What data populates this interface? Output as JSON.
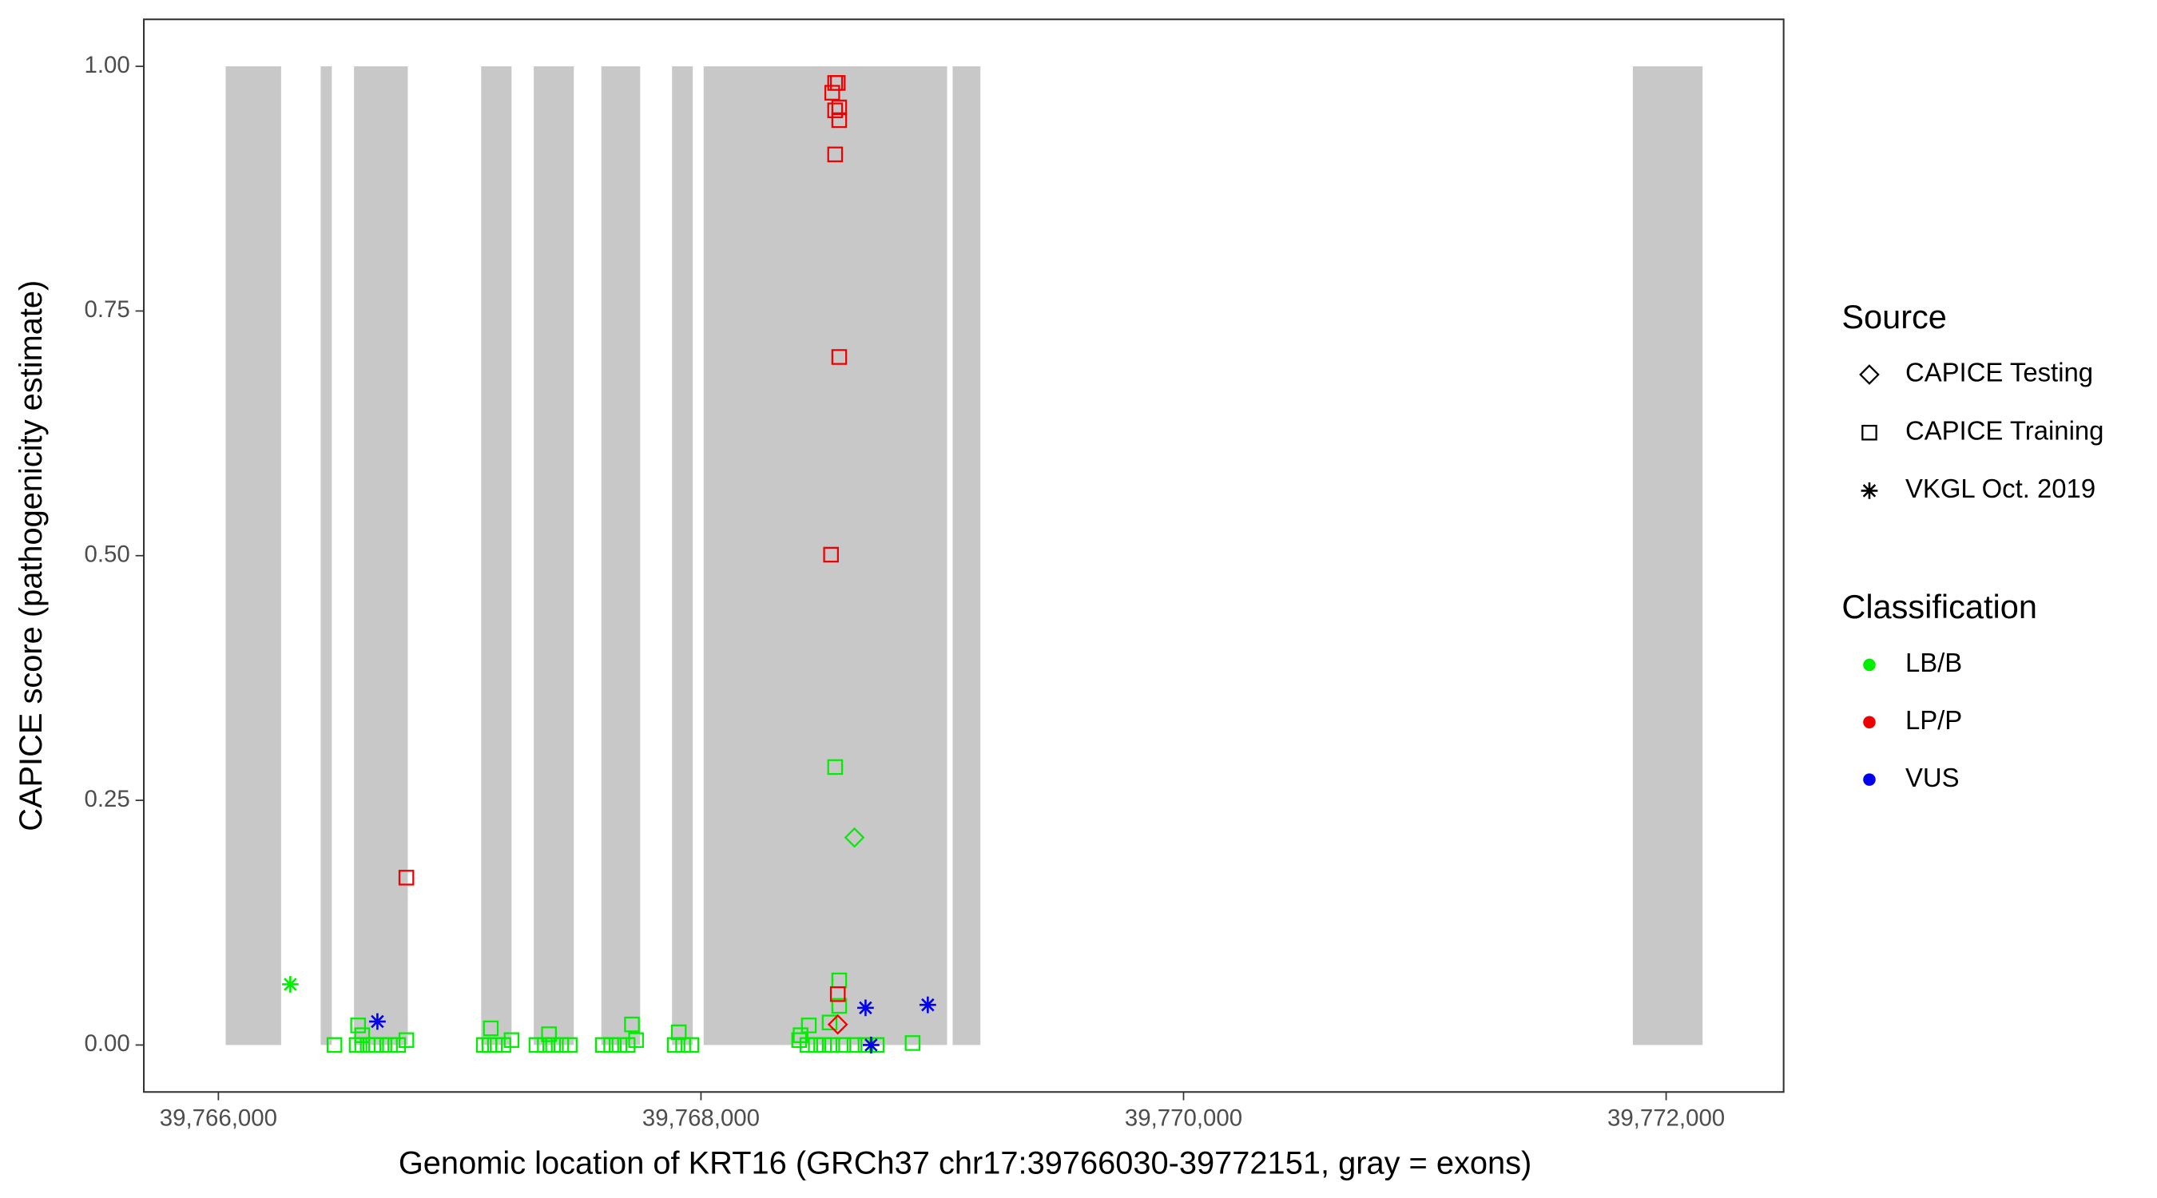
{
  "chart_data": {
    "type": "scatter",
    "x_label": "Genomic location of KRT16 (GRCh37 chr17:39766030-39772151, gray = exons)",
    "y_label": "CAPICE score (pathogenicity estimate)",
    "xlim": [
      39765691,
      39772487
    ],
    "ylim": [
      -0.048,
      1.048
    ],
    "xticks": [
      {
        "value": 39766000,
        "label": "39,766,000"
      },
      {
        "value": 39768000,
        "label": "39,768,000"
      },
      {
        "value": 39770000,
        "label": "39,770,000"
      },
      {
        "value": 39772000,
        "label": "39,772,000"
      }
    ],
    "yticks": [
      {
        "value": 0,
        "label": "0.00"
      },
      {
        "value": 0.25,
        "label": "0.25"
      },
      {
        "value": 0.5,
        "label": "0.50"
      },
      {
        "value": 0.75,
        "label": "0.75"
      },
      {
        "value": 1,
        "label": "1.00"
      }
    ],
    "exon_color": "#c8c8c8",
    "exons": [
      [
        39766030,
        39766260
      ],
      [
        39766424,
        39766470
      ],
      [
        39766562,
        39766785
      ],
      [
        39767089,
        39767215
      ],
      [
        39767307,
        39767473
      ],
      [
        39767587,
        39767748
      ],
      [
        39767880,
        39767966
      ],
      [
        39768011,
        39769020
      ],
      [
        39769043,
        39769158
      ],
      [
        39771862,
        39772151
      ]
    ],
    "source_title": "Source",
    "sources": [
      {
        "name": "CAPICE Testing",
        "shape": "diamond"
      },
      {
        "name": "CAPICE Training",
        "shape": "square"
      },
      {
        "name": "VKGL Oct. 2019",
        "shape": "asterisk"
      }
    ],
    "class_title": "Classification",
    "classes": [
      {
        "name": "LB/B",
        "color": "#00ee00"
      },
      {
        "name": "LP/P",
        "color": "#ee0000"
      },
      {
        "name": "VUS",
        "color": "#0000ee"
      }
    ],
    "series": [
      {
        "source": "CAPICE Training",
        "classification": "LB/B",
        "x": [
          39766481,
          39766573,
          39766596,
          39766619,
          39766642,
          39766676,
          39766711,
          39766745,
          39766779,
          39766579,
          39766596,
          39767100,
          39767123,
          39767146,
          39767181,
          39767215,
          39767129,
          39767318,
          39767353,
          39767387,
          39767421,
          39767456,
          39767370,
          39767593,
          39767628,
          39767662,
          39767696,
          39767731,
          39767714,
          39767891,
          39767926,
          39767960,
          39767908,
          39768407,
          39768441,
          39768476,
          39768510,
          39768544,
          39768590,
          39768636,
          39768682,
          39768728,
          39768877,
          39768447,
          39768413,
          39768556,
          39768573,
          39768573,
          39768533
        ],
        "values": [
          0,
          0,
          0,
          0,
          0,
          0,
          0,
          0,
          0.005,
          0.02,
          0.01,
          0,
          0,
          0,
          0,
          0.005,
          0.017,
          0,
          0,
          0,
          0,
          0,
          0.011,
          0,
          0,
          0,
          0,
          0.005,
          0.021,
          0,
          0,
          0,
          0.013,
          0.005,
          0,
          0,
          0,
          0,
          0,
          0,
          0,
          0,
          0.002,
          0.02,
          0.01,
          0.284,
          0.066,
          0.04,
          0.023
        ]
      },
      {
        "source": "CAPICE Training",
        "classification": "LP/P",
        "x": [
          39768556,
          39768567,
          39768544,
          39768556,
          39768573,
          39768573,
          39768556,
          39768573,
          39768539,
          39766779,
          39768567
        ],
        "values": [
          0.983,
          0.983,
          0.973,
          0.955,
          0.958,
          0.945,
          0.91,
          0.703,
          0.501,
          0.171,
          0.052
        ]
      },
      {
        "source": "CAPICE Testing",
        "classification": "LP/P",
        "x": [
          39768567
        ],
        "values": [
          0.021
        ]
      },
      {
        "source": "CAPICE Testing",
        "classification": "LB/B",
        "x": [
          39768636
        ],
        "values": [
          0.212
        ]
      },
      {
        "source": "VKGL Oct. 2019",
        "classification": "LB/B",
        "x": [
          39766298
        ],
        "values": [
          0.062
        ]
      },
      {
        "source": "VKGL Oct. 2019",
        "classification": "VUS",
        "x": [
          39766659,
          39768682,
          39768940,
          39768705
        ],
        "values": [
          0.024,
          0.038,
          0.041,
          0
        ]
      }
    ]
  }
}
